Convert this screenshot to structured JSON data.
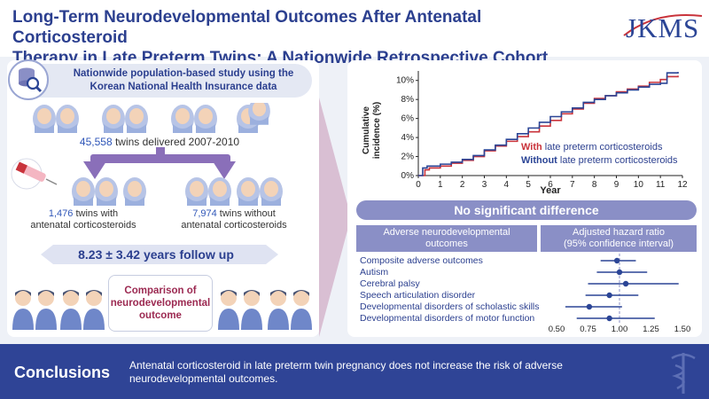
{
  "header": {
    "title_line1": "Long-Term Neurodevelopmental Outcomes After Antenatal Corticosteroid",
    "title_line2": "Therapy in Late Preterm Twins: A Nationwide Retrospective Cohort Study",
    "journal": "JKMS"
  },
  "study": {
    "database_line1": "Nationwide population-based study using the",
    "database_line2": "Korean National Health Insurance data",
    "total_count": "45,558",
    "total_text": " twins delivered 2007-2010",
    "group_with_count": "1,476",
    "group_with_line1": " twins with",
    "group_with_line2": "antenatal corticosteroids",
    "group_without_count": "7,974",
    "group_without_line1": " twins without",
    "group_without_line2": "antenatal corticosteroids",
    "follow_up": "8.23 ± 3.42 years follow up",
    "comparison_line1": "Comparison of",
    "comparison_line2": "neurodevelopmental",
    "comparison_line3": "outcome"
  },
  "chart_data": [
    {
      "type": "line",
      "title": "",
      "xlabel": "Year",
      "ylabel_line1": "Cumulative",
      "ylabel_line2": "incidence (%)",
      "xlim": [
        0,
        12
      ],
      "ylim": [
        0,
        11
      ],
      "x_ticks": [
        "0",
        "1",
        "2",
        "3",
        "4",
        "5",
        "6",
        "7",
        "8",
        "9",
        "10",
        "11",
        "12"
      ],
      "y_ticks": [
        "0%",
        "2%",
        "4%",
        "6%",
        "8%",
        "10%"
      ],
      "series": [
        {
          "name": "With late preterm corticosteroids",
          "label_bold": "With",
          "label_rest": " late preterm corticosteroids",
          "color": "#c9333b",
          "x": [
            0,
            0.3,
            0.5,
            1,
            1.5,
            2,
            2.5,
            3,
            3.5,
            4,
            4.5,
            5,
            5.5,
            6,
            6.5,
            7,
            7.5,
            8,
            8.5,
            9,
            9.5,
            10,
            10.5,
            11,
            11.3,
            11.8
          ],
          "y": [
            0,
            0.6,
            0.8,
            1.0,
            1.3,
            1.6,
            2.0,
            2.6,
            3.1,
            3.6,
            4.1,
            4.6,
            5.2,
            5.8,
            6.5,
            7.0,
            7.6,
            8.1,
            8.4,
            8.8,
            9.1,
            9.4,
            9.8,
            10.1,
            10.4,
            10.5
          ]
        },
        {
          "name": "Without late preterm corticosteroids",
          "label_bold": "Without",
          "label_rest": " late preterm corticosteroids",
          "color": "#2b4596",
          "x": [
            0,
            0.2,
            0.4,
            1,
            1.5,
            2,
            2.5,
            3,
            3.5,
            4,
            4.5,
            5,
            5.5,
            6,
            6.5,
            7,
            7.5,
            8,
            8.5,
            9,
            9.5,
            10,
            10.5,
            11,
            11.3,
            11.8
          ],
          "y": [
            0,
            0.8,
            1.0,
            1.2,
            1.4,
            1.7,
            2.1,
            2.7,
            3.2,
            3.8,
            4.4,
            5.0,
            5.6,
            6.2,
            6.7,
            7.1,
            7.7,
            8.0,
            8.4,
            8.7,
            9.0,
            9.3,
            9.6,
            9.7,
            10.8,
            10.9
          ]
        }
      ]
    },
    {
      "type": "forest",
      "xlim": [
        0.5,
        1.5
      ],
      "x_ticks": [
        "0.50",
        "0.75",
        "1.00",
        "1.25",
        "1.50"
      ],
      "reference": 1.0,
      "rows": [
        {
          "label": "Composite adverse outcomes",
          "hr": 0.98,
          "lo": 0.85,
          "hi": 1.13
        },
        {
          "label": "Autism",
          "hr": 1.0,
          "lo": 0.82,
          "hi": 1.22
        },
        {
          "label": "Cerebral palsy",
          "hr": 1.05,
          "lo": 0.75,
          "hi": 1.47
        },
        {
          "label": "Speech articulation disorder",
          "hr": 0.92,
          "lo": 0.73,
          "hi": 1.15
        },
        {
          "label": "Developmental disorders of scholastic skills",
          "hr": 0.76,
          "lo": 0.57,
          "hi": 1.02
        },
        {
          "label": "Developmental disorders of motor function",
          "hr": 0.92,
          "lo": 0.66,
          "hi": 1.28
        }
      ]
    }
  ],
  "results": {
    "banner": "No significant difference",
    "col1_line1": "Adverse neurodevelopmental",
    "col1_line2": "outcomes",
    "col2_line1": "Adjusted hazard ratio",
    "col2_line2": "(95% confidence interval)"
  },
  "footer": {
    "label": "Conclusions",
    "text": "Antenatal corticosteroid in late preterm twin pregnancy does not increase the risk of adverse neurodevelopmental outcomes."
  },
  "colors": {
    "navy": "#2f4496",
    "accent_red": "#c9333b",
    "purple": "#8a8fc6"
  }
}
